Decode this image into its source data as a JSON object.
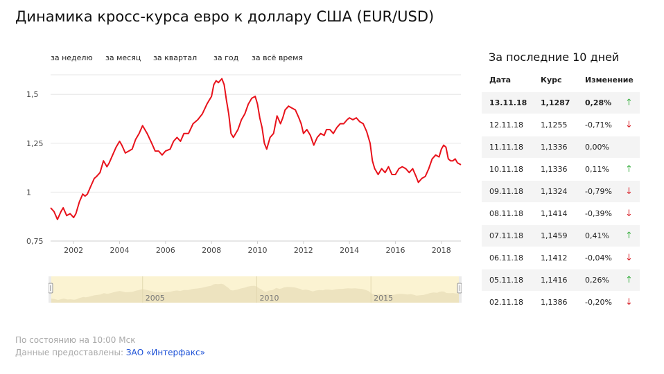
{
  "page": {
    "title": "Динамика кросс-курса евро к доллару США (EUR/USD)"
  },
  "periods": [
    {
      "label": "за неделю"
    },
    {
      "label": "за месяц"
    },
    {
      "label": "за квартал"
    },
    {
      "label": "за год"
    },
    {
      "label": "за всё время"
    }
  ],
  "chart_data": {
    "type": "line",
    "title": "",
    "xlabel": "",
    "ylabel": "",
    "xlim": [
      2001.0,
      2018.85
    ],
    "ylim": [
      0.75,
      1.6
    ],
    "y_ticks": [
      {
        "value": 0.75,
        "label": "0,75"
      },
      {
        "value": 1.0,
        "label": "1"
      },
      {
        "value": 1.25,
        "label": "1,25"
      },
      {
        "value": 1.5,
        "label": "1,5"
      }
    ],
    "x_ticks": [
      {
        "value": 2002,
        "label": "2002"
      },
      {
        "value": 2004,
        "label": "2004"
      },
      {
        "value": 2006,
        "label": "2006"
      },
      {
        "value": 2008,
        "label": "2008"
      },
      {
        "value": 2010,
        "label": "2010"
      },
      {
        "value": 2012,
        "label": "2012"
      },
      {
        "value": 2014,
        "label": "2014"
      },
      {
        "value": 2016,
        "label": "2016"
      },
      {
        "value": 2018,
        "label": "2018"
      }
    ],
    "grid": "horizontal",
    "series": [
      {
        "color": "#e8121b",
        "x": [
          2001.0,
          2001.15,
          2001.3,
          2001.45,
          2001.55,
          2001.7,
          2001.85,
          2002.0,
          2002.1,
          2002.25,
          2002.4,
          2002.5,
          2002.6,
          2002.75,
          2002.9,
          2003.0,
          2003.15,
          2003.3,
          2003.45,
          2003.55,
          2003.7,
          2003.85,
          2004.0,
          2004.1,
          2004.25,
          2004.4,
          2004.55,
          2004.7,
          2004.85,
          2005.0,
          2005.2,
          2005.4,
          2005.55,
          2005.7,
          2005.85,
          2006.0,
          2006.2,
          2006.35,
          2006.5,
          2006.65,
          2006.8,
          2007.0,
          2007.2,
          2007.4,
          2007.6,
          2007.8,
          2007.9,
          2008.0,
          2008.1,
          2008.2,
          2008.3,
          2008.45,
          2008.55,
          2008.65,
          2008.75,
          2008.85,
          2008.95,
          2009.05,
          2009.15,
          2009.3,
          2009.45,
          2009.6,
          2009.75,
          2009.9,
          2010.0,
          2010.1,
          2010.2,
          2010.3,
          2010.4,
          2010.55,
          2010.7,
          2010.85,
          2011.0,
          2011.1,
          2011.2,
          2011.35,
          2011.5,
          2011.65,
          2011.8,
          2011.9,
          2012.0,
          2012.15,
          2012.3,
          2012.45,
          2012.6,
          2012.75,
          2012.9,
          2013.0,
          2013.15,
          2013.3,
          2013.45,
          2013.6,
          2013.75,
          2013.9,
          2014.0,
          2014.15,
          2014.3,
          2014.45,
          2014.6,
          2014.75,
          2014.9,
          2015.0,
          2015.1,
          2015.25,
          2015.4,
          2015.55,
          2015.7,
          2015.85,
          2016.0,
          2016.15,
          2016.3,
          2016.45,
          2016.6,
          2016.75,
          2016.9,
          2017.0,
          2017.15,
          2017.3,
          2017.45,
          2017.6,
          2017.75,
          2017.9,
          2018.0,
          2018.1,
          2018.2,
          2018.3,
          2018.4,
          2018.5,
          2018.6,
          2018.7,
          2018.85
        ],
        "y": [
          0.92,
          0.9,
          0.86,
          0.9,
          0.92,
          0.88,
          0.89,
          0.87,
          0.89,
          0.95,
          0.99,
          0.98,
          0.99,
          1.03,
          1.07,
          1.08,
          1.1,
          1.16,
          1.13,
          1.15,
          1.19,
          1.23,
          1.26,
          1.24,
          1.2,
          1.21,
          1.22,
          1.27,
          1.3,
          1.34,
          1.3,
          1.25,
          1.21,
          1.21,
          1.19,
          1.21,
          1.22,
          1.26,
          1.28,
          1.26,
          1.3,
          1.3,
          1.35,
          1.37,
          1.4,
          1.45,
          1.47,
          1.49,
          1.55,
          1.57,
          1.56,
          1.58,
          1.55,
          1.47,
          1.4,
          1.3,
          1.28,
          1.3,
          1.32,
          1.37,
          1.4,
          1.45,
          1.48,
          1.49,
          1.45,
          1.38,
          1.33,
          1.25,
          1.22,
          1.28,
          1.3,
          1.39,
          1.35,
          1.38,
          1.42,
          1.44,
          1.43,
          1.42,
          1.38,
          1.35,
          1.3,
          1.32,
          1.29,
          1.24,
          1.28,
          1.3,
          1.29,
          1.32,
          1.32,
          1.3,
          1.33,
          1.35,
          1.35,
          1.37,
          1.38,
          1.37,
          1.38,
          1.36,
          1.35,
          1.31,
          1.25,
          1.16,
          1.12,
          1.09,
          1.12,
          1.1,
          1.13,
          1.09,
          1.09,
          1.12,
          1.13,
          1.12,
          1.1,
          1.12,
          1.08,
          1.05,
          1.07,
          1.08,
          1.12,
          1.17,
          1.19,
          1.18,
          1.22,
          1.24,
          1.23,
          1.17,
          1.16,
          1.16,
          1.17,
          1.15,
          1.14
        ]
      }
    ],
    "navigator": {
      "labels": [
        {
          "value": 2005,
          "label": "2005"
        },
        {
          "value": 2010,
          "label": "2010"
        },
        {
          "value": 2015,
          "label": "2015"
        }
      ]
    }
  },
  "footer": {
    "status": "По состоянию на 10:00 Мск",
    "provided": "Данные предоставлены:",
    "source": "ЗАО «Интерфакс»"
  },
  "side": {
    "title": "За последние 10 дней",
    "headers": {
      "date": "Дата",
      "rate": "Курс",
      "change": "Изменение"
    },
    "rows": [
      {
        "date": "13.11.18",
        "rate": "1,1287",
        "change": "0,28%",
        "dir": "up"
      },
      {
        "date": "12.11.18",
        "rate": "1,1255",
        "change": "-0,71%",
        "dir": "down"
      },
      {
        "date": "11.11.18",
        "rate": "1,1336",
        "change": "0,00%",
        "dir": "none"
      },
      {
        "date": "10.11.18",
        "rate": "1,1336",
        "change": "0,11%",
        "dir": "up"
      },
      {
        "date": "09.11.18",
        "rate": "1,1324",
        "change": "-0,79%",
        "dir": "down"
      },
      {
        "date": "08.11.18",
        "rate": "1,1414",
        "change": "-0,39%",
        "dir": "down"
      },
      {
        "date": "07.11.18",
        "rate": "1,1459",
        "change": "0,41%",
        "dir": "up"
      },
      {
        "date": "06.11.18",
        "rate": "1,1412",
        "change": "-0,04%",
        "dir": "down"
      },
      {
        "date": "05.11.18",
        "rate": "1,1416",
        "change": "0,26%",
        "dir": "up"
      },
      {
        "date": "02.11.18",
        "rate": "1,1386",
        "change": "-0,20%",
        "dir": "down"
      }
    ]
  },
  "icons": {
    "up": "arrow-up-icon",
    "down": "arrow-down-icon"
  },
  "colors": {
    "line": "#e8121b",
    "up": "#3cb043",
    "down": "#d8232a",
    "link": "#1a4fd6",
    "navigator": "#fbf3d2"
  }
}
